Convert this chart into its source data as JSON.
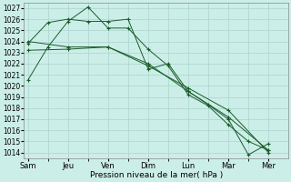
{
  "xlabel": "Pression niveau de la mer( hPa )",
  "background_color": "#cceee8",
  "grid_color": "#aad4cc",
  "line_color": "#1a5c2a",
  "ylim": [
    1013.5,
    1027.5
  ],
  "yticks": [
    1014,
    1015,
    1016,
    1017,
    1018,
    1019,
    1020,
    1021,
    1022,
    1023,
    1024,
    1025,
    1026,
    1027
  ],
  "x_labels": [
    "Sam",
    "Jeu",
    "Ven",
    "Dim",
    "Lun",
    "Mar",
    "Mer"
  ],
  "x_tick_pos": [
    0,
    2,
    4,
    6,
    8,
    10,
    12
  ],
  "xlim": [
    -0.2,
    13.0
  ],
  "series": [
    {
      "x": [
        0,
        1,
        2,
        3,
        4,
        5,
        6,
        7,
        8,
        9,
        10,
        11,
        12
      ],
      "y": [
        1020.5,
        1023.5,
        1025.8,
        1027.1,
        1025.2,
        1025.2,
        1023.3,
        1021.8,
        1019.2,
        1018.2,
        1016.5,
        1015.0,
        1014.2
      ]
    },
    {
      "x": [
        0,
        1,
        2,
        3,
        4,
        5,
        6,
        7,
        8,
        9,
        10,
        11,
        12
      ],
      "y": [
        1023.8,
        1025.7,
        1026.0,
        1025.8,
        1025.8,
        1026.0,
        1021.5,
        1022.0,
        1019.5,
        1018.3,
        1017.0,
        1013.8,
        1014.8
      ]
    },
    {
      "x": [
        0,
        2,
        4,
        6,
        8,
        10,
        12
      ],
      "y": [
        1023.2,
        1023.3,
        1023.5,
        1022.0,
        1019.5,
        1017.2,
        1014.2
      ]
    },
    {
      "x": [
        0,
        2,
        4,
        6,
        8,
        10,
        12
      ],
      "y": [
        1024.0,
        1023.5,
        1023.5,
        1021.8,
        1019.8,
        1017.8,
        1014.0
      ]
    }
  ]
}
